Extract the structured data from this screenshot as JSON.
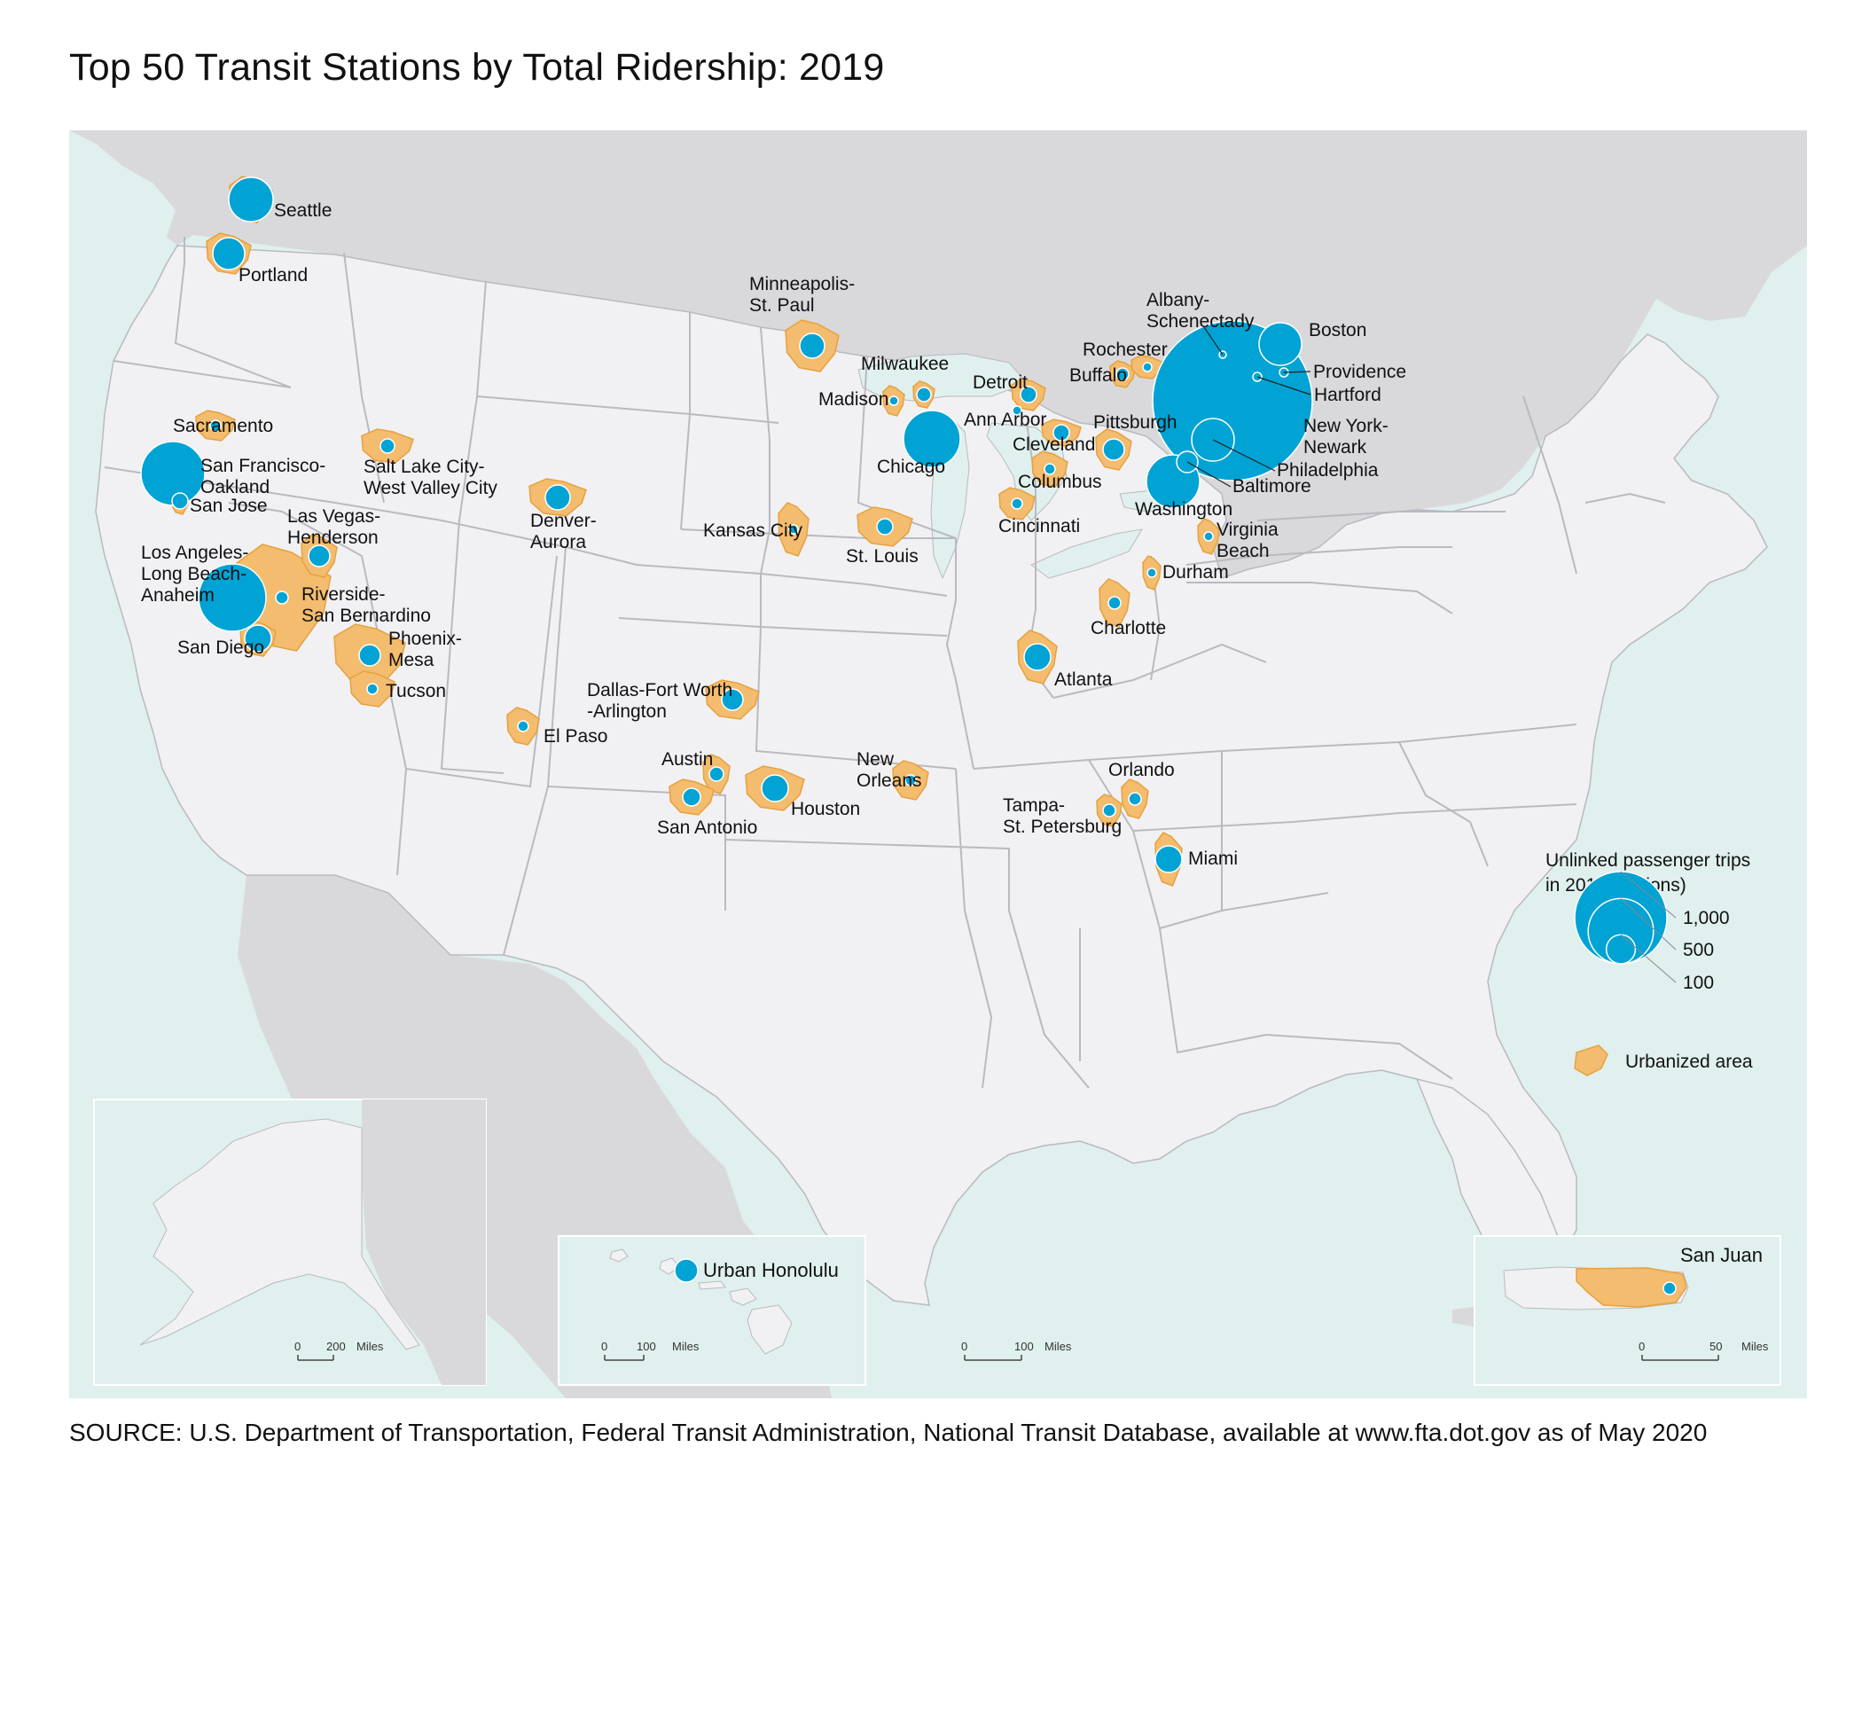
{
  "title": "Top 50 Transit Stations by Total Ridership: 2019",
  "source": "SOURCE: U.S. Department of Transportation, Federal Transit Administration, National Transit Database, available at www.fta.dot.gov as of May 2020",
  "colors": {
    "water": "#dff0ee",
    "land": "#f1f1f4",
    "foreign_land": "#d9d9dc",
    "state_border": "#b9b9c0",
    "urbanized_fill": "#f3bc6e",
    "urbanized_stroke": "#e7a13f",
    "station_circle": "#00a3d4"
  },
  "legend": {
    "title_line1": "Unlinked passenger trips",
    "title_line2": "in 2019 (millions)",
    "size_values": [
      1000,
      500,
      100
    ],
    "size_labels": [
      "1,000",
      "500",
      "100"
    ],
    "urbanized_label": "Urbanized area"
  },
  "insets": {
    "alaska": {
      "scale_labels": [
        "0",
        "200",
        "Miles"
      ]
    },
    "hawaii": {
      "label": "Urban Honolulu",
      "scale_labels": [
        "0",
        "100",
        "Miles"
      ]
    },
    "puerto_rico": {
      "label": "San Juan",
      "scale_labels": [
        "0",
        "50",
        "Miles"
      ]
    }
  },
  "main_scale_labels": [
    "0",
    "100",
    "Miles"
  ],
  "cities": [
    {
      "name": "Seattle",
      "label_lines": [
        "Seattle"
      ]
    },
    {
      "name": "Portland",
      "label_lines": [
        "Portland"
      ]
    },
    {
      "name": "Sacramento",
      "label_lines": [
        "Sacramento"
      ]
    },
    {
      "name": "San Francisco-Oakland",
      "label_lines": [
        "San Francisco-",
        "Oakland"
      ]
    },
    {
      "name": "San Jose",
      "label_lines": [
        "San Jose"
      ]
    },
    {
      "name": "Los Angeles-Long Beach-Anaheim",
      "label_lines": [
        "Los Angeles-",
        "Long Beach-",
        "Anaheim"
      ]
    },
    {
      "name": "Riverside-San Bernardino",
      "label_lines": [
        "Riverside-",
        "San Bernardino"
      ]
    },
    {
      "name": "San Diego",
      "label_lines": [
        "San Diego"
      ]
    },
    {
      "name": "Las Vegas-Henderson",
      "label_lines": [
        "Las Vegas-",
        "Henderson"
      ]
    },
    {
      "name": "Salt Lake City-West Valley City",
      "label_lines": [
        "Salt Lake City-",
        "West Valley City"
      ]
    },
    {
      "name": "Phoenix-Mesa",
      "label_lines": [
        "Phoenix-",
        "Mesa"
      ]
    },
    {
      "name": "Tucson",
      "label_lines": [
        "Tucson"
      ]
    },
    {
      "name": "Denver-Aurora",
      "label_lines": [
        "Denver-",
        "Aurora"
      ]
    },
    {
      "name": "El Paso",
      "label_lines": [
        "El Paso"
      ]
    },
    {
      "name": "Minneapolis-St. Paul",
      "label_lines": [
        "Minneapolis-",
        "St. Paul"
      ]
    },
    {
      "name": "Kansas City",
      "label_lines": [
        "Kansas City"
      ]
    },
    {
      "name": "St. Louis",
      "label_lines": [
        "St. Louis"
      ]
    },
    {
      "name": "Dallas-Fort Worth-Arlington",
      "label_lines": [
        "Dallas-Fort Worth",
        "-Arlington"
      ]
    },
    {
      "name": "Austin",
      "label_lines": [
        "Austin"
      ]
    },
    {
      "name": "San Antonio",
      "label_lines": [
        "San Antonio"
      ]
    },
    {
      "name": "Houston",
      "label_lines": [
        "Houston"
      ]
    },
    {
      "name": "New Orleans",
      "label_lines": [
        "New",
        "Orleans"
      ]
    },
    {
      "name": "Madison",
      "label_lines": [
        "Madison"
      ]
    },
    {
      "name": "Milwaukee",
      "label_lines": [
        "Milwaukee"
      ]
    },
    {
      "name": "Chicago",
      "label_lines": [
        "Chicago"
      ]
    },
    {
      "name": "Detroit",
      "label_lines": [
        "Detroit"
      ]
    },
    {
      "name": "Ann Arbor",
      "label_lines": [
        "Ann Arbor"
      ]
    },
    {
      "name": "Cleveland",
      "label_lines": [
        "Cleveland"
      ]
    },
    {
      "name": "Columbus",
      "label_lines": [
        "Columbus"
      ]
    },
    {
      "name": "Cincinnati",
      "label_lines": [
        "Cincinnati"
      ]
    },
    {
      "name": "Pittsburgh",
      "label_lines": [
        "Pittsburgh"
      ]
    },
    {
      "name": "Buffalo",
      "label_lines": [
        "Buffalo"
      ]
    },
    {
      "name": "Rochester",
      "label_lines": [
        "Rochester"
      ]
    },
    {
      "name": "Albany-Schenectady",
      "label_lines": [
        "Albany-",
        "Schenectady"
      ]
    },
    {
      "name": "Boston",
      "label_lines": [
        "Boston"
      ]
    },
    {
      "name": "Providence",
      "label_lines": [
        "Providence"
      ]
    },
    {
      "name": "Hartford",
      "label_lines": [
        "Hartford"
      ]
    },
    {
      "name": "New York-Newark",
      "label_lines": [
        "New York-",
        "Newark"
      ]
    },
    {
      "name": "Philadelphia",
      "label_lines": [
        "Philadelphia"
      ]
    },
    {
      "name": "Baltimore",
      "label_lines": [
        "Baltimore"
      ]
    },
    {
      "name": "Washington",
      "label_lines": [
        "Washington"
      ]
    },
    {
      "name": "Virginia Beach",
      "label_lines": [
        "Virginia",
        "Beach"
      ]
    },
    {
      "name": "Durham",
      "label_lines": [
        "Durham"
      ]
    },
    {
      "name": "Charlotte",
      "label_lines": [
        "Charlotte"
      ]
    },
    {
      "name": "Atlanta",
      "label_lines": [
        "Atlanta"
      ]
    },
    {
      "name": "Orlando",
      "label_lines": [
        "Orlando"
      ]
    },
    {
      "name": "Tampa-St. Petersburg",
      "label_lines": [
        "Tampa-",
        "St. Petersburg"
      ]
    },
    {
      "name": "Miami",
      "label_lines": [
        "Miami"
      ]
    }
  ]
}
